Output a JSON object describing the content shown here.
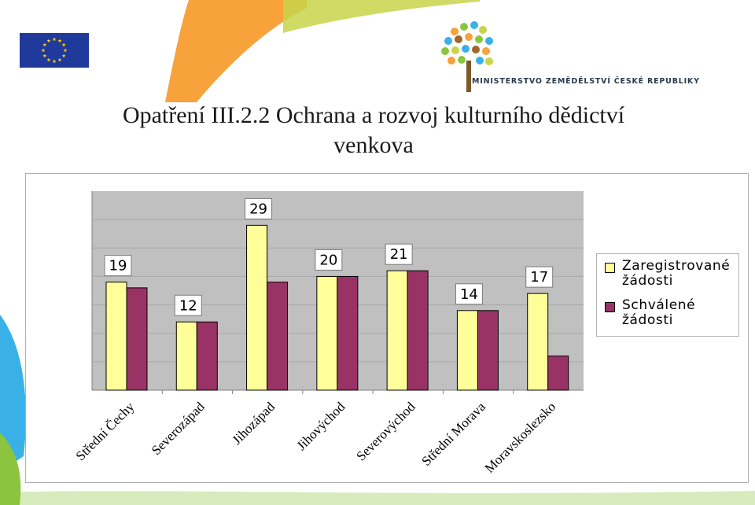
{
  "page": {
    "title_line1": "Opatření III.2.2 Ochrana a rozvoj kulturního dědictví",
    "title_line2": "venkova",
    "ministry_name": "MINISTERSTVO ZEMĚDĚLSTVÍ ČESKÉ REPUBLIKY"
  },
  "colors": {
    "registered": "#ffff99",
    "approved": "#993366",
    "plot_background": "#c0c0c0",
    "eu_blue": "#1f3a9b",
    "eu_star": "#ffcc00"
  },
  "chart_data": {
    "type": "bar",
    "categories": [
      "Střední Čechy",
      "Severozápad",
      "Jihozápad",
      "Jihovýchod",
      "Severovýchod",
      "Střední Morava",
      "Moravskoslezsko"
    ],
    "series": [
      {
        "name": "Zaregistrované žádosti",
        "values": [
          19,
          12,
          29,
          20,
          21,
          14,
          17
        ]
      },
      {
        "name": "Schválené žádosti",
        "values": [
          18,
          12,
          19,
          20,
          21,
          14,
          6
        ]
      }
    ],
    "data_labels": [
      "19",
      "12",
      "29",
      "20",
      "21",
      "14",
      "17"
    ],
    "ylim": [
      0,
      35
    ],
    "grid": true,
    "legend_position": "right",
    "xlabel": "",
    "ylabel": ""
  }
}
